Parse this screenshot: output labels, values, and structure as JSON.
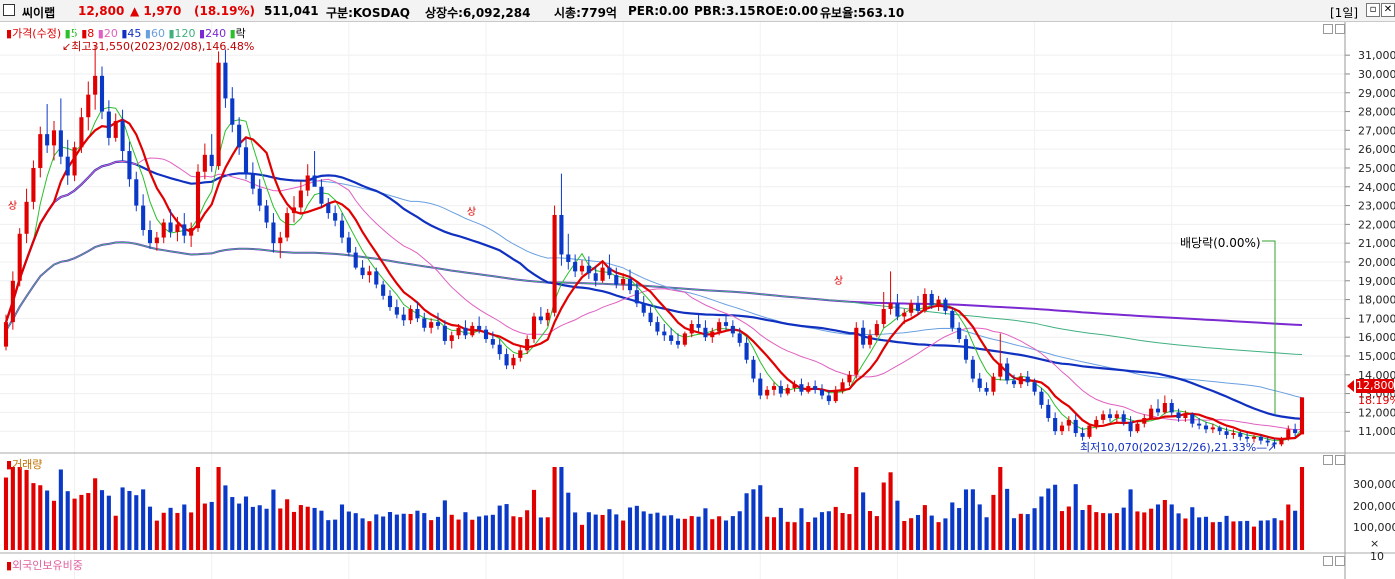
{
  "header": {
    "name": "씨이랩",
    "price": "12,800",
    "change": "▲ 1,970",
    "change_pct": "(18.19%)",
    "volume": "511,041",
    "market": "구분:KOSDAQ",
    "shares": "상장수:6,092,284",
    "mcap": "시총:779억",
    "per": "PER:0.00",
    "pbr": "PBR:3.15",
    "roe": "ROE:0.00",
    "reserve": "유보율:563.10",
    "period": "[1일]"
  },
  "legend": {
    "price": "가격(수정)",
    "ma5": "5",
    "ma8": "8",
    "ma20": "20",
    "ma45": "45",
    "ma60": "60",
    "ma120": "120",
    "ma240": "240",
    "down": "락"
  },
  "annotations": {
    "high": "최고31,550(2023/02/08),146.48%",
    "low": "최저10,070(2023/12/26),21.33%",
    "dividend": "배당락(0.00%)",
    "limit_up": "상"
  },
  "price_axis": [
    "31,000",
    "30,000",
    "29,000",
    "28,000",
    "27,000",
    "26,000",
    "25,000",
    "24,000",
    "23,000",
    "22,000",
    "21,000",
    "20,000",
    "19,000",
    "18,000",
    "17,000",
    "16,000",
    "15,000",
    "14,000",
    "13,000",
    "12,000",
    "11,000"
  ],
  "price_tag": {
    "price": "12,800",
    "pct": "18.19%"
  },
  "volume_panel": {
    "title": "거래량",
    "axis": [
      "300,000",
      "200,000",
      "100,000"
    ],
    "unit": "× 10"
  },
  "foreign_panel": {
    "title": "외국인보유비중"
  },
  "colors": {
    "up": "#e00000",
    "down": "#0a39c8",
    "ma5": "#2bbf2b",
    "ma8": "#e00000",
    "ma20": "#e060c0",
    "ma45": "#1030c0",
    "ma60": "#6aa0e0",
    "ma120": "#40b080",
    "ma240": "#7a2ad0"
  },
  "chart_data": {
    "type": "candlestick",
    "ylim": [
      10000,
      31700
    ],
    "candles": [
      [
        15500,
        17200,
        15300,
        16800
      ],
      [
        16800,
        19500,
        16400,
        19000
      ],
      [
        19000,
        21800,
        18700,
        21500
      ],
      [
        21500,
        23900,
        21000,
        23200
      ],
      [
        23200,
        25400,
        22800,
        25000
      ],
      [
        25000,
        27200,
        24500,
        26800
      ],
      [
        26800,
        28400,
        25800,
        26200
      ],
      [
        26200,
        27500,
        25400,
        27000
      ],
      [
        27000,
        28700,
        25200,
        25600
      ],
      [
        25600,
        26500,
        24100,
        24600
      ],
      [
        24600,
        26400,
        24300,
        26100
      ],
      [
        26100,
        28200,
        25800,
        27700
      ],
      [
        27700,
        29600,
        27000,
        28900
      ],
      [
        28900,
        31550,
        28100,
        29900
      ],
      [
        29900,
        30400,
        27600,
        28000
      ],
      [
        28000,
        28600,
        26200,
        26600
      ],
      [
        26600,
        27900,
        26400,
        27500
      ],
      [
        27500,
        28100,
        25400,
        25900
      ],
      [
        25900,
        26400,
        24000,
        24400
      ],
      [
        24400,
        24800,
        22700,
        23000
      ],
      [
        23000,
        23600,
        21400,
        21700
      ],
      [
        21700,
        22200,
        20700,
        21000
      ],
      [
        21000,
        21600,
        20600,
        21300
      ],
      [
        21300,
        22300,
        21000,
        22100
      ],
      [
        22100,
        22800,
        21300,
        21600
      ],
      [
        21600,
        22400,
        21100,
        22000
      ],
      [
        22000,
        22600,
        21000,
        21400
      ],
      [
        21400,
        22100,
        20800,
        21800
      ],
      [
        21800,
        25200,
        21600,
        24800
      ],
      [
        24800,
        26300,
        24400,
        25700
      ],
      [
        25700,
        26800,
        24800,
        25100
      ],
      [
        25100,
        31200,
        24900,
        30600
      ],
      [
        30600,
        31300,
        28200,
        28700
      ],
      [
        28700,
        29300,
        26900,
        27300
      ],
      [
        27300,
        27700,
        25700,
        26100
      ],
      [
        26100,
        26600,
        24400,
        24700
      ],
      [
        24700,
        25300,
        23600,
        23900
      ],
      [
        23900,
        24400,
        22700,
        23000
      ],
      [
        23000,
        23300,
        21800,
        22100
      ],
      [
        22100,
        22600,
        20500,
        21000
      ],
      [
        21000,
        21600,
        20200,
        21300
      ],
      [
        21300,
        22900,
        21100,
        22600
      ],
      [
        22600,
        23500,
        22100,
        22900
      ],
      [
        22900,
        24300,
        22600,
        23800
      ],
      [
        23800,
        25200,
        23500,
        24600
      ],
      [
        24600,
        25900,
        24200,
        24000
      ],
      [
        24000,
        24400,
        22900,
        23100
      ],
      [
        23100,
        23400,
        22300,
        22600
      ],
      [
        22600,
        23000,
        21900,
        22200
      ],
      [
        22200,
        22600,
        21000,
        21300
      ],
      [
        21300,
        21600,
        20300,
        20500
      ],
      [
        20500,
        20800,
        19600,
        19700
      ],
      [
        19700,
        20100,
        19100,
        19300
      ],
      [
        19300,
        19800,
        18900,
        19500
      ],
      [
        19500,
        19700,
        18600,
        18800
      ],
      [
        18800,
        19000,
        18000,
        18200
      ],
      [
        18200,
        18500,
        17400,
        17600
      ],
      [
        17600,
        18000,
        17000,
        17200
      ],
      [
        17200,
        17600,
        16600,
        16900
      ],
      [
        16900,
        17700,
        16700,
        17500
      ],
      [
        17500,
        17900,
        16800,
        17000
      ],
      [
        17000,
        17300,
        16300,
        16500
      ],
      [
        16500,
        17000,
        16200,
        16800
      ],
      [
        16800,
        17300,
        16400,
        16600
      ],
      [
        16600,
        16900,
        15600,
        15800
      ],
      [
        15800,
        16300,
        15400,
        16100
      ],
      [
        16100,
        16700,
        15900,
        16500
      ],
      [
        16500,
        16900,
        15900,
        16100
      ],
      [
        16100,
        16800,
        16000,
        16600
      ],
      [
        16600,
        17100,
        16200,
        16400
      ],
      [
        16400,
        16600,
        15700,
        15900
      ],
      [
        15900,
        16300,
        15400,
        15600
      ],
      [
        15600,
        15900,
        14800,
        15100
      ],
      [
        15100,
        15400,
        14300,
        14500
      ],
      [
        14500,
        15100,
        14300,
        14900
      ],
      [
        14900,
        15500,
        14700,
        15300
      ],
      [
        15300,
        16100,
        15100,
        15900
      ],
      [
        15900,
        17300,
        15700,
        17100
      ],
      [
        17100,
        17600,
        16700,
        16900
      ],
      [
        16900,
        17500,
        16600,
        17300
      ],
      [
        17300,
        23000,
        17100,
        22500
      ],
      [
        22500,
        24700,
        19800,
        20400
      ],
      [
        20400,
        21500,
        19600,
        20000
      ],
      [
        20000,
        20400,
        19200,
        19500
      ],
      [
        19500,
        20100,
        19300,
        19800
      ],
      [
        19800,
        20300,
        19100,
        19400
      ],
      [
        19400,
        19800,
        18700,
        19000
      ],
      [
        19000,
        20000,
        18900,
        19700
      ],
      [
        19700,
        20400,
        19100,
        19300
      ],
      [
        19300,
        19700,
        18600,
        18800
      ],
      [
        18800,
        19400,
        18500,
        19100
      ],
      [
        19100,
        19600,
        18300,
        18500
      ],
      [
        18500,
        18900,
        17600,
        17800
      ],
      [
        17800,
        18200,
        17100,
        17300
      ],
      [
        17300,
        17600,
        16600,
        16800
      ],
      [
        16800,
        17100,
        16100,
        16300
      ],
      [
        16300,
        16700,
        15800,
        16100
      ],
      [
        16100,
        16500,
        15600,
        15800
      ],
      [
        15800,
        16200,
        15400,
        15600
      ],
      [
        15600,
        16300,
        15500,
        16200
      ],
      [
        16200,
        16900,
        16000,
        16700
      ],
      [
        16700,
        17200,
        16300,
        16500
      ],
      [
        16500,
        16900,
        15800,
        16000
      ],
      [
        16000,
        16500,
        15700,
        16300
      ],
      [
        16300,
        17000,
        16100,
        16800
      ],
      [
        16800,
        17200,
        16400,
        16600
      ],
      [
        16600,
        16900,
        16000,
        16200
      ],
      [
        16200,
        16500,
        15500,
        15700
      ],
      [
        15700,
        16000,
        14600,
        14800
      ],
      [
        14800,
        15000,
        13600,
        13800
      ],
      [
        13800,
        14100,
        12700,
        12900
      ],
      [
        12900,
        13400,
        12700,
        13200
      ],
      [
        13200,
        13600,
        12900,
        13400
      ],
      [
        13400,
        13700,
        12800,
        13000
      ],
      [
        13000,
        13500,
        12900,
        13300
      ],
      [
        13300,
        13700,
        13100,
        13500
      ],
      [
        13500,
        13800,
        12900,
        13100
      ],
      [
        13100,
        13600,
        13000,
        13400
      ],
      [
        13400,
        13700,
        13000,
        13200
      ],
      [
        13200,
        13500,
        12700,
        12900
      ],
      [
        12900,
        13200,
        12400,
        12600
      ],
      [
        12600,
        13400,
        12500,
        13200
      ],
      [
        13200,
        13800,
        13000,
        13600
      ],
      [
        13600,
        14200,
        13400,
        14000
      ],
      [
        14000,
        16800,
        13800,
        16500
      ],
      [
        16500,
        16900,
        15400,
        15600
      ],
      [
        15600,
        16400,
        15400,
        16100
      ],
      [
        16100,
        16900,
        16000,
        16700
      ],
      [
        16700,
        18400,
        16500,
        17500
      ],
      [
        17500,
        19500,
        17200,
        17800
      ],
      [
        17800,
        18300,
        16900,
        17100
      ],
      [
        17100,
        17500,
        16700,
        17300
      ],
      [
        17300,
        18000,
        17100,
        17800
      ],
      [
        17800,
        18200,
        17200,
        17400
      ],
      [
        17400,
        18600,
        17300,
        18300
      ],
      [
        18300,
        18500,
        17500,
        17700
      ],
      [
        17700,
        18200,
        17400,
        18000
      ],
      [
        18000,
        18100,
        17200,
        17400
      ],
      [
        17400,
        17600,
        16300,
        16500
      ],
      [
        16500,
        16800,
        15700,
        15900
      ],
      [
        15900,
        16100,
        14600,
        14800
      ],
      [
        14800,
        15000,
        13600,
        13800
      ],
      [
        13800,
        14100,
        13100,
        13300
      ],
      [
        13300,
        13600,
        12900,
        13100
      ],
      [
        13100,
        14100,
        12900,
        13900
      ],
      [
        13900,
        16200,
        13700,
        14600
      ],
      [
        14600,
        14900,
        13500,
        13700
      ],
      [
        13700,
        14000,
        13300,
        13500
      ],
      [
        13500,
        14100,
        13300,
        13900
      ],
      [
        13900,
        14200,
        13400,
        13600
      ],
      [
        13600,
        13800,
        12900,
        13100
      ],
      [
        13100,
        13300,
        12200,
        12400
      ],
      [
        12400,
        12700,
        11500,
        11700
      ],
      [
        11700,
        12000,
        10800,
        11000
      ],
      [
        11000,
        11500,
        10800,
        11300
      ],
      [
        11300,
        11800,
        11000,
        11600
      ],
      [
        11600,
        11900,
        10700,
        10900
      ],
      [
        10900,
        11200,
        10500,
        10700
      ],
      [
        10700,
        11400,
        10600,
        11300
      ],
      [
        11300,
        11800,
        11100,
        11600
      ],
      [
        11600,
        12100,
        11400,
        11900
      ],
      [
        11900,
        12200,
        11500,
        11700
      ],
      [
        11700,
        12100,
        11400,
        11900
      ],
      [
        11900,
        12100,
        11300,
        11500
      ],
      [
        11500,
        11800,
        10700,
        11000
      ],
      [
        11000,
        11600,
        10900,
        11400
      ],
      [
        11400,
        11900,
        11200,
        11700
      ],
      [
        11700,
        12400,
        11600,
        12200
      ],
      [
        12200,
        12700,
        11800,
        12000
      ],
      [
        12000,
        12900,
        11900,
        12500
      ],
      [
        12500,
        12700,
        11800,
        12000
      ],
      [
        12000,
        12200,
        11500,
        11700
      ],
      [
        11700,
        12100,
        11500,
        11900
      ],
      [
        11900,
        12000,
        11200,
        11400
      ],
      [
        11400,
        11700,
        11100,
        11300
      ],
      [
        11300,
        11500,
        10900,
        11100
      ],
      [
        11100,
        11400,
        10900,
        11200
      ],
      [
        11200,
        11300,
        10800,
        11000
      ],
      [
        11000,
        11200,
        10600,
        10800
      ],
      [
        10800,
        11100,
        10600,
        10900
      ],
      [
        10900,
        11000,
        10500,
        10700
      ],
      [
        10700,
        10900,
        10400,
        10600
      ],
      [
        10600,
        10800,
        10400,
        10700
      ],
      [
        10700,
        10800,
        10300,
        10500
      ],
      [
        10500,
        10700,
        10200,
        10400
      ],
      [
        10400,
        10600,
        10070,
        10300
      ],
      [
        10300,
        10700,
        10200,
        10600
      ],
      [
        10600,
        11300,
        10500,
        11100
      ],
      [
        11100,
        11400,
        10700,
        10900
      ],
      [
        10830,
        12800,
        10830,
        12800
      ]
    ],
    "volume_hint": "bars beneath candles; colors follow candle direction"
  }
}
